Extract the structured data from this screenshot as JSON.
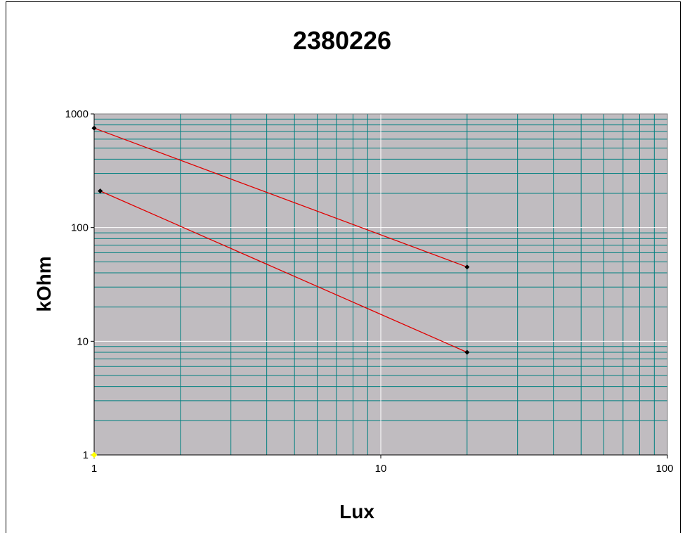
{
  "chart_data": {
    "type": "line",
    "title": "2380226",
    "xlabel": "Lux",
    "ylabel": "kOhm",
    "x_scale": "log",
    "y_scale": "log",
    "xlim": [
      1,
      100
    ],
    "ylim": [
      1,
      1000
    ],
    "x_ticks": [
      "1",
      "10",
      "100"
    ],
    "y_ticks": [
      "1",
      "10",
      "100",
      "1000"
    ],
    "grid": true,
    "legend": "none",
    "series": [
      {
        "color": "#e00000",
        "marker_color": "#000000",
        "points": [
          {
            "x": 1,
            "y": 750
          },
          {
            "x": 20,
            "y": 45
          }
        ]
      },
      {
        "color": "#e00000",
        "marker_color": "#000000",
        "points": [
          {
            "x": 1.05,
            "y": 210
          },
          {
            "x": 20,
            "y": 8
          }
        ]
      }
    ],
    "annotations": [
      {
        "x": 1,
        "y": 1,
        "marker_color": "#ffff00"
      }
    ],
    "colors": {
      "plot_background": "#c0bcc0",
      "minor_grid": "#008080",
      "major_grid": "#ffffff",
      "frame": "#000000"
    }
  }
}
